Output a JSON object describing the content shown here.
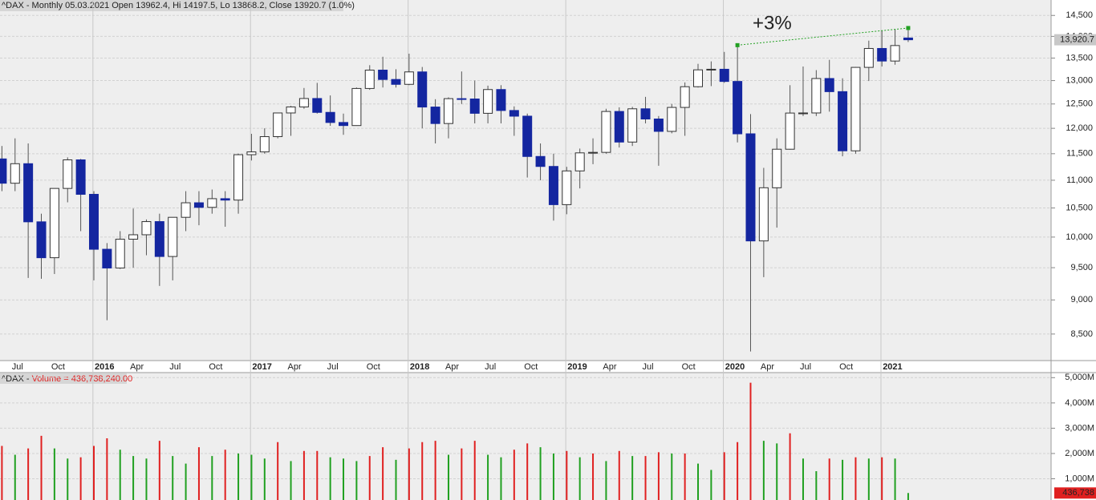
{
  "chart_data": [
    {
      "type": "candlestick",
      "title": "^DAX - Monthly 05.03.2021 Open 13962.4, Hi 14197.5, Lo 13868.2, Close 13920.7 (1.0%)",
      "annotation": "+3%",
      "last_price_label": "13,920.7",
      "categories": [
        null,
        "Jul",
        null,
        null,
        "Oct",
        null,
        null,
        "2016",
        null,
        null,
        "Apr",
        null,
        null,
        "Jul",
        null,
        null,
        "Oct",
        null,
        null,
        "2017",
        null,
        null,
        "Apr",
        null,
        null,
        "Jul",
        null,
        null,
        "Oct",
        null,
        null,
        "2018",
        null,
        null,
        "Apr",
        null,
        null,
        "Jul",
        null,
        null,
        "Oct",
        null,
        null,
        "2019",
        null,
        null,
        "Apr",
        null,
        null,
        "Jul",
        null,
        null,
        "Oct",
        null,
        null,
        "2020",
        null,
        null,
        "Apr",
        null,
        null,
        "Jul",
        null,
        null,
        "Oct",
        null,
        null,
        "2021",
        null,
        null
      ],
      "open": [
        11400,
        10945,
        11309,
        10259,
        9660,
        10850,
        11382,
        10743,
        9798,
        9495,
        9965,
        10039,
        10263,
        9680,
        10337,
        10592,
        10511,
        10665,
        10640,
        11481,
        11535,
        11834,
        12313,
        12438,
        12615,
        12325,
        12118,
        12056,
        12829,
        13230,
        13024,
        12918,
        13190,
        12436,
        12097,
        12612,
        12605,
        12306,
        12806,
        12364,
        12247,
        11447,
        11257,
        10559,
        11173,
        11516,
        11526,
        12344,
        11727,
        12399,
        12189,
        11939,
        12428,
        12867,
        13236,
        13249,
        12981,
        11890,
        9936,
        10862,
        11587,
        12311,
        12313,
        13045,
        12761,
        11556,
        13291,
        13719,
        13433,
        13962.4
      ],
      "high": [
        11650,
        11800,
        11700,
        10400,
        10850,
        11430,
        11400,
        10800,
        9900,
        10100,
        10490,
        10300,
        10400,
        10340,
        10800,
        10800,
        10830,
        10800,
        11500,
        11890,
        12000,
        12300,
        12460,
        12840,
        12950,
        12680,
        12300,
        12850,
        13340,
        13530,
        13250,
        13600,
        13300,
        12600,
        12640,
        13200,
        13000,
        12890,
        12900,
        12450,
        12300,
        11700,
        11500,
        11250,
        11600,
        11800,
        12400,
        12430,
        12440,
        12650,
        12250,
        12500,
        12960,
        13370,
        13425,
        13640,
        13795,
        12290,
        11230,
        11800,
        12900,
        13310,
        13230,
        13460,
        13050,
        13300,
        13900,
        14130,
        14170,
        14197.5
      ],
      "low": [
        10800,
        10800,
        9338,
        9325,
        9400,
        10600,
        10100,
        9300,
        8699,
        9480,
        9500,
        9700,
        9214,
        9300,
        10100,
        10200,
        10400,
        10175,
        10400,
        11370,
        11500,
        11800,
        11850,
        12400,
        12300,
        12050,
        11870,
        12050,
        12800,
        12850,
        12850,
        12900,
        12000,
        11700,
        11800,
        12500,
        12100,
        12100,
        12100,
        11850,
        11050,
        11000,
        10280,
        10390,
        10850,
        11300,
        11500,
        11620,
        11650,
        12100,
        11270,
        11900,
        11850,
        12850,
        12880,
        12950,
        11720,
        8255,
        9350,
        10160,
        11580,
        12250,
        12250,
        12340,
        11450,
        11500,
        12990,
        13310,
        13350,
        13868.2
      ],
      "close": [
        10945,
        11309,
        10259,
        9660,
        10850,
        11382,
        10743,
        9798,
        9495,
        9965,
        10039,
        10263,
        9680,
        10337,
        10592,
        10511,
        10665,
        10640,
        11481,
        11535,
        11834,
        12313,
        12438,
        12615,
        12325,
        12118,
        12056,
        12829,
        13230,
        13024,
        12918,
        13190,
        12436,
        12097,
        12612,
        12605,
        12306,
        12806,
        12364,
        12247,
        11447,
        11257,
        10559,
        11173,
        11516,
        11526,
        12344,
        11727,
        12399,
        12189,
        11939,
        12428,
        12867,
        13236,
        13249,
        12981,
        11890,
        9936,
        10862,
        11587,
        12311,
        12313,
        13045,
        12761,
        11556,
        13291,
        13719,
        13433,
        13786,
        13920.7
      ],
      "up_color": "#ffffff",
      "down_color": "#1426a0",
      "annotation_color": "#e02020",
      "trend_color": "#22a022",
      "log_scale": true,
      "grid": true,
      "ylim": [
        8130,
        14880
      ],
      "yticks": [
        {
          "value": 14500,
          "label": "14,500"
        },
        {
          "value": 14000,
          "label": "14,000"
        },
        {
          "value": 13500,
          "label": "13,500"
        },
        {
          "value": 13000,
          "label": "13,000"
        },
        {
          "value": 12500,
          "label": "12,500"
        },
        {
          "value": 12000,
          "label": "12,000"
        },
        {
          "value": 11500,
          "label": "11,500"
        },
        {
          "value": 11000,
          "label": "11,000"
        },
        {
          "value": 10500,
          "label": "10,500"
        },
        {
          "value": 10000,
          "label": "10,000"
        },
        {
          "value": 9500,
          "label": "9,500"
        },
        {
          "value": 9000,
          "label": "9,000"
        },
        {
          "value": 8500,
          "label": "8,500"
        }
      ]
    },
    {
      "type": "bar",
      "title_prefix": "^DAX - ",
      "title": "Volume = 436,738,240.00",
      "last_value_label": "436,738",
      "values": [
        2300,
        1950,
        2200,
        2700,
        2200,
        1800,
        1850,
        2300,
        2600,
        2150,
        1900,
        1800,
        2500,
        1900,
        1600,
        2250,
        1900,
        2150,
        2000,
        1950,
        1800,
        2450,
        1700,
        2100,
        2100,
        1850,
        1800,
        1700,
        1900,
        2250,
        1750,
        2200,
        2450,
        2500,
        1950,
        2200,
        2500,
        1950,
        1850,
        2150,
        2400,
        2250,
        2000,
        2100,
        1850,
        2000,
        1700,
        2100,
        1900,
        1900,
        2050,
        2000,
        2000,
        1600,
        1350,
        2050,
        2450,
        4800,
        2500,
        2400,
        2800,
        1800,
        1300,
        1800,
        1750,
        1850,
        1800,
        1850,
        1800,
        436.738
      ],
      "up_color": "#e02020",
      "down_color": "#20a020",
      "ylim": [
        160,
        5200
      ],
      "yticks": [
        {
          "value": 5000,
          "label": "5,000M"
        },
        {
          "value": 4000,
          "label": "4,000M"
        },
        {
          "value": 3000,
          "label": "3,000M"
        },
        {
          "value": 2000,
          "label": "2,000M"
        },
        {
          "value": 1000,
          "label": "1,000M"
        }
      ]
    }
  ]
}
